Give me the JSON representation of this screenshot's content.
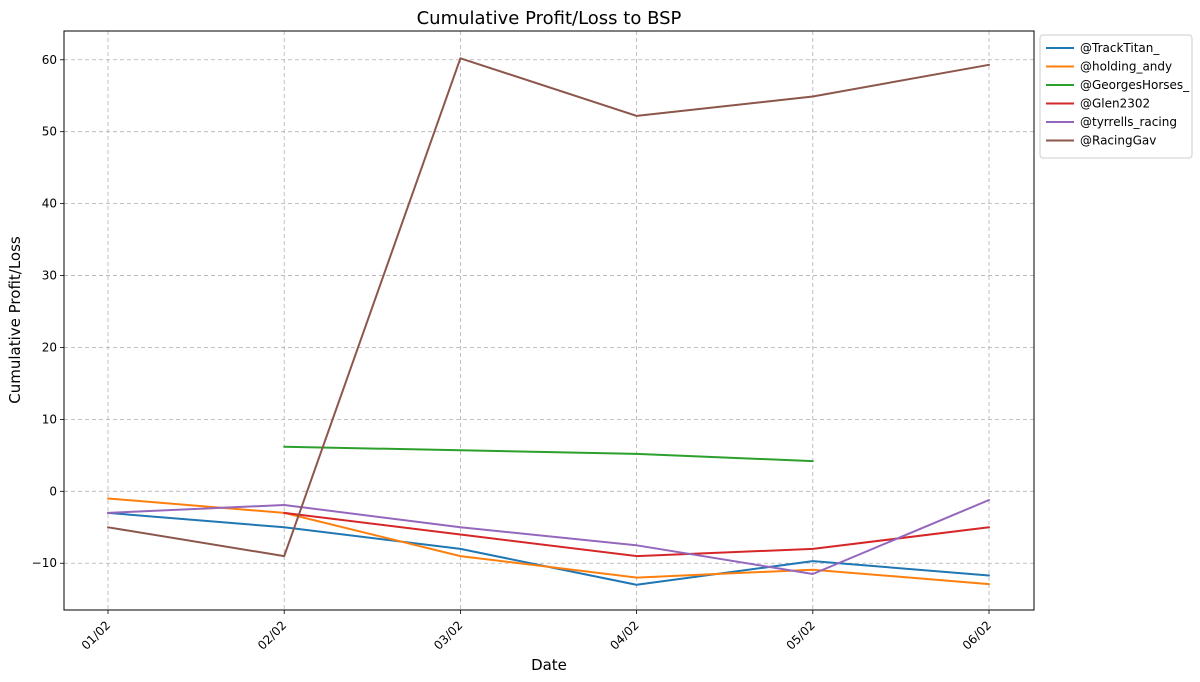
{
  "chart_data": {
    "type": "line",
    "title": "Cumulative Profit/Loss to BSP",
    "xlabel": "Date",
    "ylabel": "Cumulative Profit/Loss",
    "categories": [
      "01/02",
      "02/02",
      "03/02",
      "04/02",
      "05/02",
      "06/02"
    ],
    "ylim": [
      -16.5,
      64
    ],
    "yticks": [
      -10,
      0,
      10,
      20,
      30,
      40,
      50,
      60
    ],
    "grid": true,
    "legend_position": "outside-top-right",
    "series": [
      {
        "name": "@TrackTitan_",
        "color": "#1f77b4",
        "values": [
          -3,
          -5,
          -8,
          -13,
          -9.7,
          -11.7
        ]
      },
      {
        "name": "@holding_andy",
        "color": "#ff7f0e",
        "values": [
          -1,
          -3,
          -9,
          -12,
          -10.9,
          -12.9
        ]
      },
      {
        "name": "@GeorgesHorses_",
        "color": "#2ca02c",
        "values": [
          null,
          6.2,
          5.7,
          5.2,
          4.2,
          null
        ]
      },
      {
        "name": "@Glen2302",
        "color": "#d62728",
        "values": [
          null,
          -3,
          -6,
          -9,
          -8,
          -5
        ]
      },
      {
        "name": "@tyrrells_racing",
        "color": "#9467bd",
        "values": [
          -3,
          -1.9,
          -5,
          -7.5,
          -11.5,
          -1.2
        ]
      },
      {
        "name": "@RacingGav",
        "color": "#8c564b",
        "values": [
          -5,
          -9,
          60.2,
          52.2,
          54.9,
          59.3
        ]
      }
    ]
  }
}
